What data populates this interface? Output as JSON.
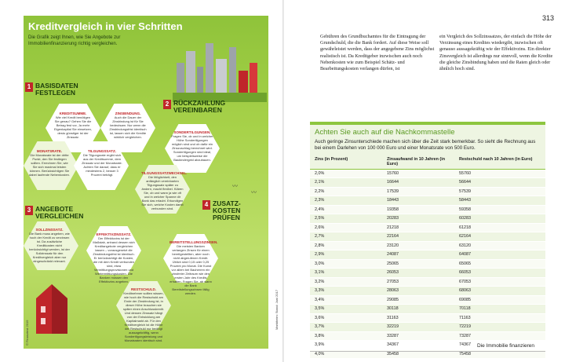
{
  "page_number": "313",
  "infographic": {
    "title": "Kreditvergleich in vier Schritten",
    "intro": "Die Grafik zeigt Ihnen, wie Sie Angebote zur Immobilienfinanzierung richtig vergleichen.",
    "steps": [
      {
        "num": "1",
        "label": "Basisdaten festlegen"
      },
      {
        "num": "2",
        "label": "Rückzahlung vereinbaren"
      },
      {
        "num": "3",
        "label": "Angebote vergleichen"
      },
      {
        "num": "4",
        "label": "Zusatz-kosten prüfen"
      }
    ],
    "hexes": [
      {
        "title": "KREDITSUMME.",
        "text": "Wie viel Kredit benötigen Sie genau? Gehen Sie die Betrag fest vor, Ja mehr Eigenkapital Sie einsetzen, desto günstiger ist der Zinssatz."
      },
      {
        "title": "ZINSBINDUNG.",
        "text": "Auch die Dauer der Zinsbindung ist für Sie bedeutsam. Nur wenn die Zinsbindungsfrist identisch ist, lassen sich die Kredite wirklich vergleichen."
      },
      {
        "title": "MONATSRATE.",
        "text": "Die Monatsrate ist der dritte Punkt, den Sie festlegen sollten. Errechnen Sie, wie Sie sich maximal leisten können. Berücksichtigen Sie dabei laufende Nebenkosten."
      },
      {
        "title": "TILGUNGSSATZ.",
        "text": "Die Tilgungsrate ergibt sich aus der Kreditsumme, dem Zinssatz und der Monatsrate. Achten Sie darauf, dass er mindestens 2, besser 3 Prozent beträgt."
      },
      {
        "title": "SONDERTILGUNGEN.",
        "text": "Fragen Sie, ob und in welcher Höhe Sondertilgungen möglich sind und ob dafür ein Zinszuschlag berechnet wird. Sondertilgungen sind ideal, um beispielsweise die Baukindergeld abzubauen."
      },
      {
        "title": "TILGUNGSSATZWECHSEL.",
        "text": "Die Möglichkeit, den anfänglich vereinbarten Tilgungssatz später zu ändern, macht flexibel. Klären Sie, ob und wann ja wie oft und in welcher Spanne dir Bank das erlaubt. Erkundigen Sie sich, welche Kosten damit verbunden sind."
      },
      {
        "title": "SOLLZINSSATZ.",
        "text": "Die Bank muss angeben, wie hoch der Kredit zu verzinsen ist. Da zusätzliche Kreditkosten nicht berücksichtigt werden, ist der Sollzinssatz für den Kreditvergleich aber nur eingeschränkt relevant."
      },
      {
        "title": "EFFEKTIVZINSSATZ.",
        "text": "Der Effektivzins ist der Maßstab, anhand dessen sich Kreditangebote vergleichen lassen – vorausgesetzt die Zinsbindungsfrist ist identisch. Er berücksichtigt die Kosten, die mit dem Kredit verbunden sind, etwa Vermittlungsprovisionen und Wertermittlungskosten. Die Banken müssen den Effektivzins angeben."
      },
      {
        "title": "BEREITSTELLUNGSZINSEN.",
        "text": "Die meisten Banken verlangen Zinsen für einen bereitgestellten, aber noch nicht abgerufenen Kredit. Üblich sind 0,15 oder 0,25 Prozent pro Monat. Die Kunst vor allem bei Bauherren ein zinsfreier Zeitraum wie den ersten Jahr des Kredits erhalten. Fragen Sie, ab wann die Bank Bereitstellungszinsen fällig werden."
      },
      {
        "title": "RESTSCHULD.",
        "text": "Kreditnehmer sollten wissen, wie hoch die Restschuld am Ende der Zinsbindung ist, in dieser Höhe brauchen sie später einen Anschlusskredit. Und dessen Zinssatz hängt von der Entwicklung am Kapitalmarkt ab. Für den Kreditvergleich ist die Höhe der Restschuld nur bedingt aussagekräftig, wenn Sondertilgungsleistung und Monatsraten identisch sind."
      }
    ],
    "vertical_label": "© Finanztest 2019",
    "icon": "house-icon"
  },
  "body_columns": [
    "Gebühren des Grundbuchamtes für die Eintragung der Grundschuld, die die Bank fordert. Auf diese Weise soll gewährleistet werden, dass der angegebene Zins möglichst realistisch ist. Da Kreditgeber inzwischen auch noch Nebenkosten wie zum Beispiel Schätz- und Bearbeitungskosten verlangen dürfen, ist",
    "ein Vergleich des Sollzinssatzes, der einfach die Höhe der Verzinsung eines Kredites wiedergibt, inzwischen oft genauso aussagekräftig wie der Effektivzins. Ein direkter Zinsvergleich ist allerdings nur sinnvoll, wenn die Kredite die gleiche Zinsbindung haben und die Raten gleich oder ähnlich hoch sind."
  ],
  "side_label": "Marktheim: Stand: Juni 2017",
  "tip": {
    "title": "Achten Sie auch auf die Nachkommastelle",
    "text": "Auch geringe Zinsunterschiede machen sich über die Zeit stark bemerkbar. So sieht die Rechnung aus bei einem Darlehen von 100 000 Euro und einer Monatsrate von 500 Euro.",
    "headers": [
      "Zins (in Prozent)",
      "Zinsaufwand in 10 Jahren (in Euro)",
      "Restschuld nach 10 Jahren (in Euro)"
    ],
    "rows": [
      [
        "2,0%",
        "15760",
        "55760"
      ],
      [
        "2,1%",
        "16644",
        "56644"
      ],
      [
        "2,2%",
        "17539",
        "57539"
      ],
      [
        "2,3%",
        "18443",
        "58443"
      ],
      [
        "2,4%",
        "19358",
        "59358"
      ],
      [
        "2,5%",
        "20283",
        "60283"
      ],
      [
        "2,6%",
        "21218",
        "61218"
      ],
      [
        "2,7%",
        "22164",
        "62164"
      ],
      [
        "2,8%",
        "23120",
        "63120"
      ],
      [
        "2,9%",
        "24087",
        "64087"
      ],
      [
        "3,0%",
        "25065",
        "65065"
      ],
      [
        "3,1%",
        "26053",
        "66053"
      ],
      [
        "3,2%",
        "27053",
        "67053"
      ],
      [
        "3,3%",
        "28063",
        "68063"
      ],
      [
        "3,4%",
        "29085",
        "69085"
      ],
      [
        "3,5%",
        "30118",
        "70118"
      ],
      [
        "3,6%",
        "31163",
        "71163"
      ],
      [
        "3,7%",
        "32219",
        "72219"
      ],
      [
        "3,8%",
        "33287",
        "73287"
      ],
      [
        "3,9%",
        "34367",
        "74367"
      ],
      [
        "4,0%",
        "35458",
        "75458"
      ]
    ]
  },
  "footer": "Die Immobilie finanzieren",
  "colors": {
    "accent_green": "#8dc63f",
    "accent_red": "#c0262a"
  }
}
